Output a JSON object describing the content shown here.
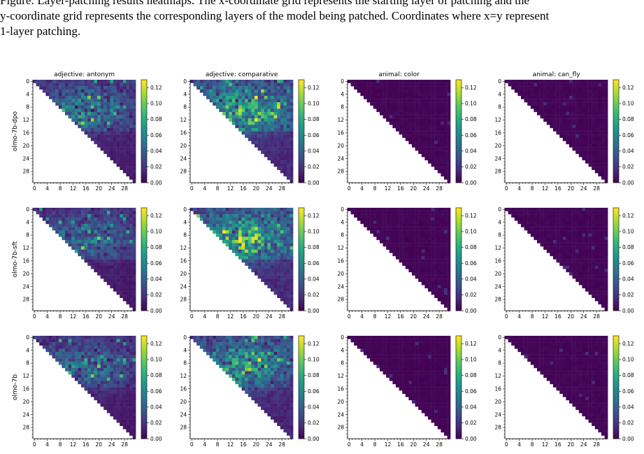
{
  "caption": {
    "line1": "Figure: Layer-patching results heatmaps. The x-coordinate grid represents the starting layer of patching and the",
    "line2": "y-coordinate grid represents the corresponding layers of the model being patched. Coordinates where x=y represent",
    "line3": "1-layer patching."
  },
  "chart_data": {
    "type": "heatmap",
    "rows": [
      "olmo-7b-dpo",
      "olmo-7b-sft",
      "olmo-7b"
    ],
    "cols": [
      "adjective: antonym",
      "adjective: comparative",
      "animal: color",
      "animal: can_fly"
    ],
    "grid_size": 32,
    "tick_labels": [
      "0",
      "4",
      "8",
      "12",
      "16",
      "20",
      "24",
      "28"
    ],
    "colorbar_ticks": [
      "0.00",
      "0.02",
      "0.04",
      "0.06",
      "0.08",
      "0.10",
      "0.12"
    ],
    "vmin": 0.0,
    "vmax": 0.13,
    "colormap": [
      "#440154",
      "#472d7b",
      "#3b528b",
      "#2c728e",
      "#21918c",
      "#28ae80",
      "#5ec962",
      "#addc30",
      "#fde725"
    ],
    "panel_intensity": [
      [
        0.045,
        0.065,
        0.003,
        0.003
      ],
      [
        0.04,
        0.07,
        0.003,
        0.003
      ],
      [
        0.04,
        0.06,
        0.002,
        0.003
      ]
    ],
    "note": "Upper-triangular heatmaps (x >= y); lower triangle is empty. Antonym and comparative panels show moderate values (up to ~0.12); animal panels are near zero."
  }
}
